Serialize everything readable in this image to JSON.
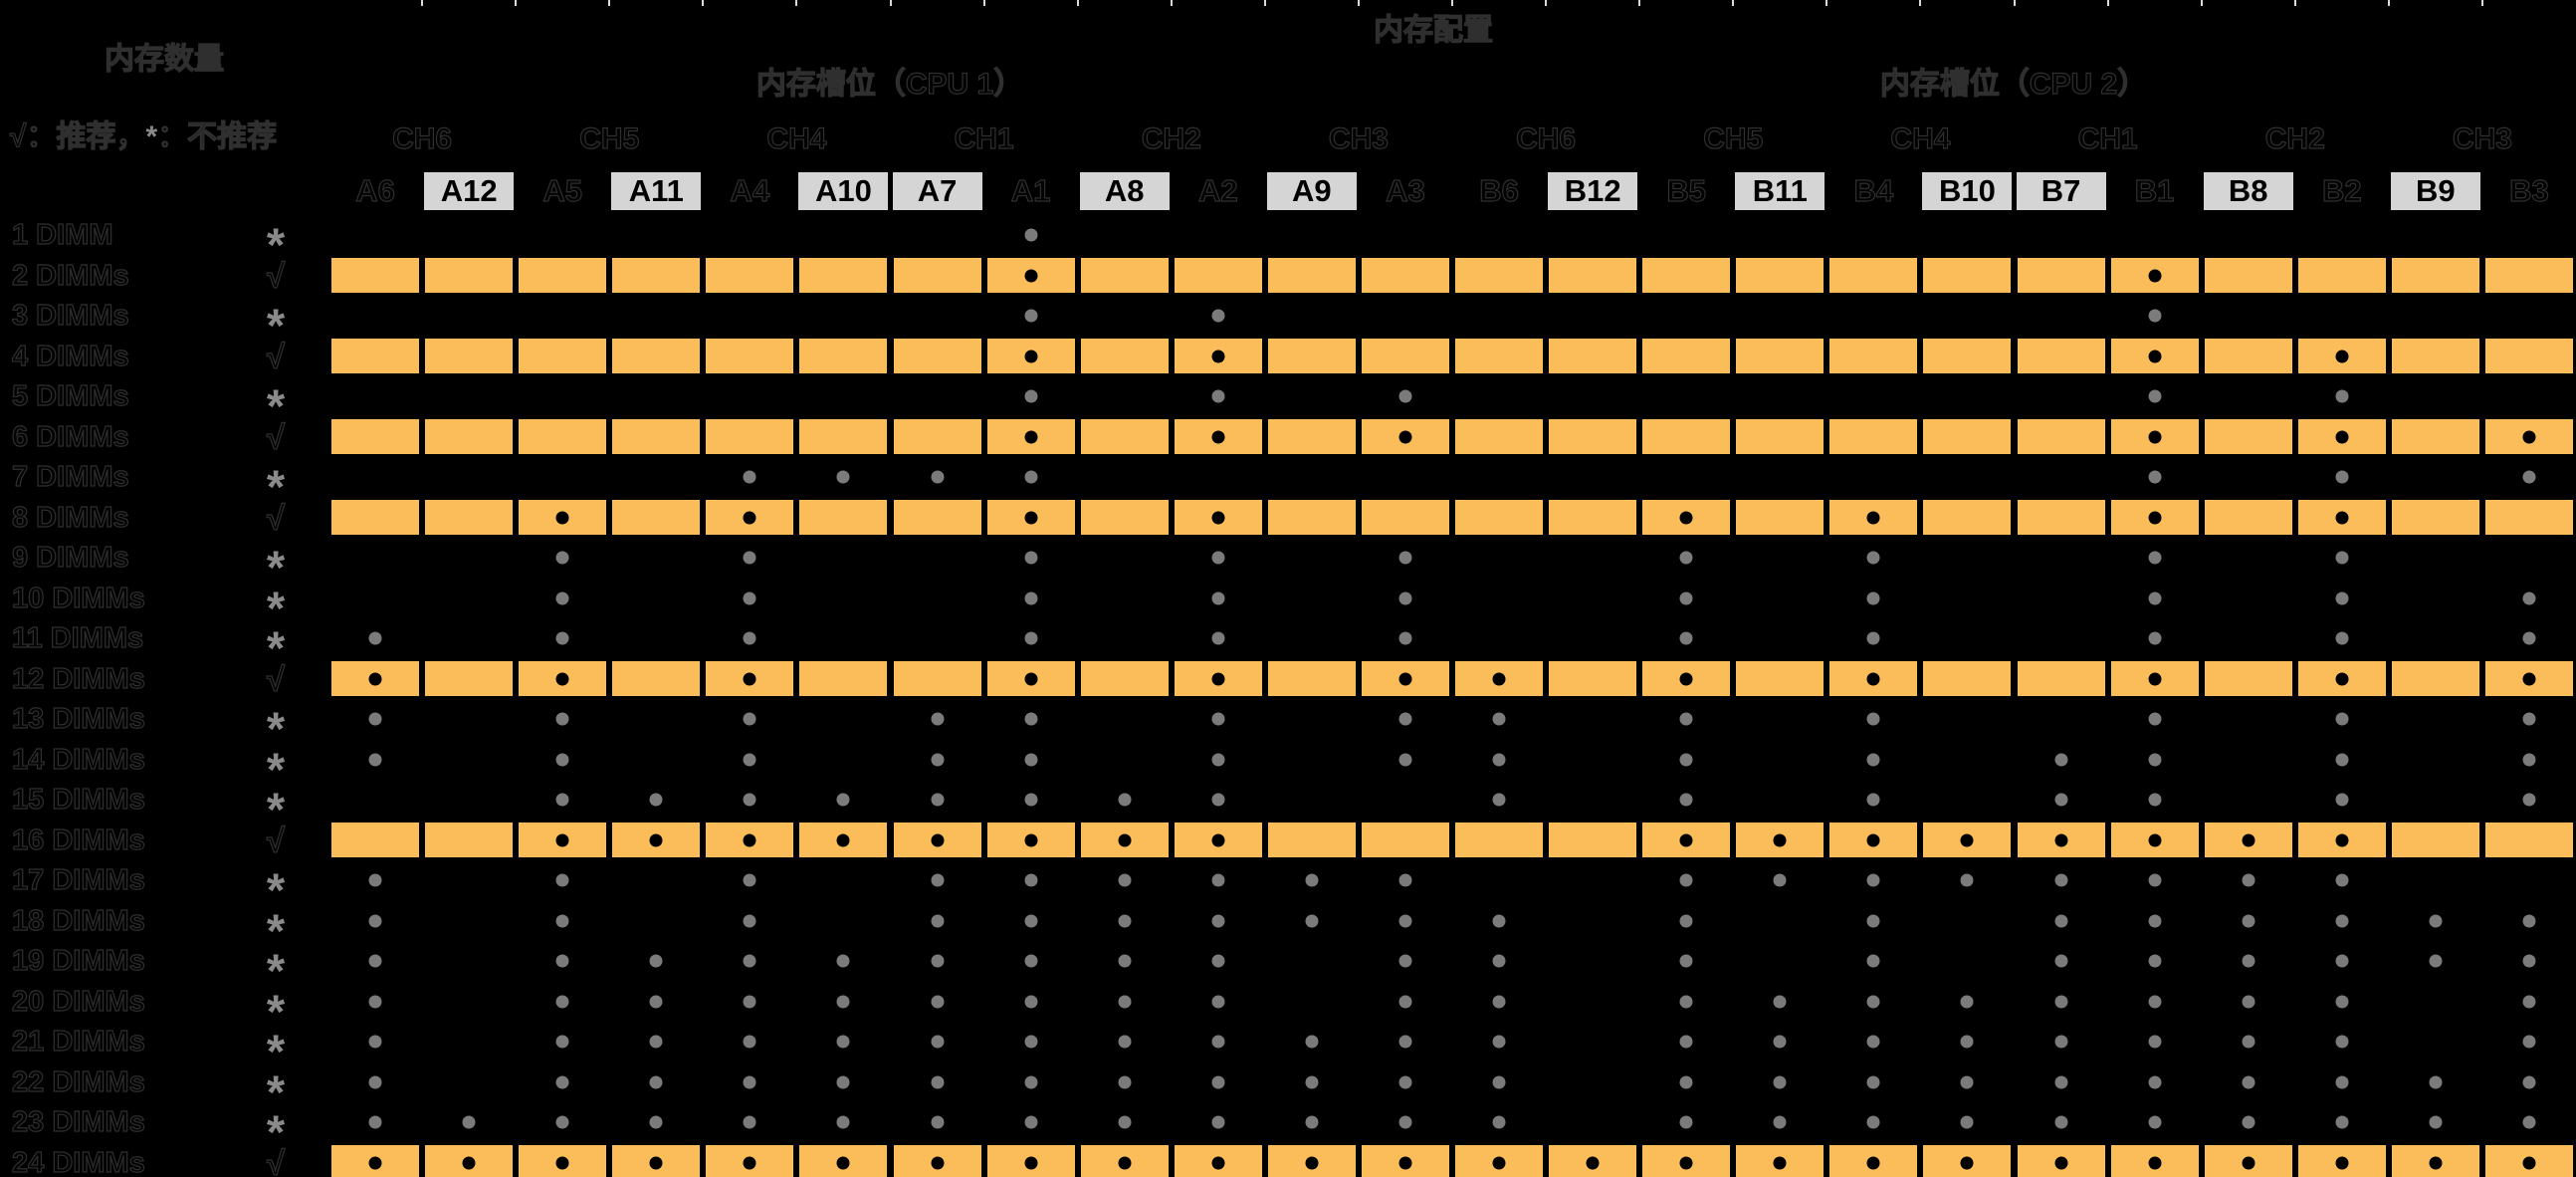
{
  "title": "内存配置",
  "columns": {
    "quantity_header": "内存数量",
    "cpu1_header": "内存槽位（CPU 1）",
    "cpu2_header": "内存槽位（CPU 2）"
  },
  "legend": {
    "check_part": "√：推荐，",
    "star": "*",
    "star_suffix": "：不推荐"
  },
  "colors": {
    "background": "#000000",
    "recommended_row": "#fbbd59",
    "highlight_slot_bg": "#d5d5d5",
    "dot_gray": "#7b7b7b",
    "dot_black": "#000000",
    "tick": "#d9d9d9"
  },
  "table": {
    "channels": [
      "CH6",
      "CH5",
      "CH4",
      "CH1",
      "CH2",
      "CH3",
      "CH6",
      "CH5",
      "CH4",
      "CH1",
      "CH2",
      "CH3"
    ],
    "slots": [
      {
        "label": "A6",
        "highlighted": false
      },
      {
        "label": "A12",
        "highlighted": true
      },
      {
        "label": "A5",
        "highlighted": false
      },
      {
        "label": "A11",
        "highlighted": true
      },
      {
        "label": "A4",
        "highlighted": false
      },
      {
        "label": "A10",
        "highlighted": true
      },
      {
        "label": "A7",
        "highlighted": true
      },
      {
        "label": "A1",
        "highlighted": false
      },
      {
        "label": "A8",
        "highlighted": true
      },
      {
        "label": "A2",
        "highlighted": false
      },
      {
        "label": "A9",
        "highlighted": true
      },
      {
        "label": "A3",
        "highlighted": false
      },
      {
        "label": "B6",
        "highlighted": false
      },
      {
        "label": "B12",
        "highlighted": true
      },
      {
        "label": "B5",
        "highlighted": false
      },
      {
        "label": "B11",
        "highlighted": true
      },
      {
        "label": "B4",
        "highlighted": false
      },
      {
        "label": "B10",
        "highlighted": true
      },
      {
        "label": "B7",
        "highlighted": true
      },
      {
        "label": "B1",
        "highlighted": false
      },
      {
        "label": "B8",
        "highlighted": true
      },
      {
        "label": "B2",
        "highlighted": false
      },
      {
        "label": "B9",
        "highlighted": true
      },
      {
        "label": "B3",
        "highlighted": false
      }
    ],
    "rows": [
      {
        "label": "1 DIMM",
        "mark": "*",
        "recommended": false,
        "populated": [
          "A1"
        ]
      },
      {
        "label": "2 DIMMs",
        "mark": "√",
        "recommended": true,
        "populated": [
          "A1",
          "B1"
        ]
      },
      {
        "label": "3 DIMMs",
        "mark": "*",
        "recommended": false,
        "populated": [
          "A1",
          "A2",
          "B1"
        ]
      },
      {
        "label": "4 DIMMs",
        "mark": "√",
        "recommended": true,
        "populated": [
          "A1",
          "A2",
          "B1",
          "B2"
        ]
      },
      {
        "label": "5 DIMMs",
        "mark": "*",
        "recommended": false,
        "populated": [
          "A1",
          "A2",
          "A3",
          "B1",
          "B2"
        ]
      },
      {
        "label": "6 DIMMs",
        "mark": "√",
        "recommended": true,
        "populated": [
          "A1",
          "A2",
          "A3",
          "B1",
          "B2",
          "B3"
        ]
      },
      {
        "label": "7 DIMMs",
        "mark": "*",
        "recommended": false,
        "populated": [
          "A4",
          "A10",
          "A7",
          "A1",
          "B1",
          "B2",
          "B3"
        ]
      },
      {
        "label": "8 DIMMs",
        "mark": "√",
        "recommended": true,
        "populated": [
          "A5",
          "A4",
          "A1",
          "A2",
          "B5",
          "B4",
          "B1",
          "B2"
        ]
      },
      {
        "label": "9 DIMMs",
        "mark": "*",
        "recommended": false,
        "populated": [
          "A5",
          "A4",
          "A1",
          "A2",
          "A3",
          "B5",
          "B4",
          "B1",
          "B2"
        ]
      },
      {
        "label": "10 DIMMs",
        "mark": "*",
        "recommended": false,
        "populated": [
          "A5",
          "A4",
          "A1",
          "A2",
          "A3",
          "B5",
          "B4",
          "B1",
          "B2",
          "B3"
        ]
      },
      {
        "label": "11 DIMMs",
        "mark": "*",
        "recommended": false,
        "populated": [
          "A6",
          "A5",
          "A4",
          "A1",
          "A2",
          "A3",
          "B5",
          "B4",
          "B1",
          "B2",
          "B3"
        ]
      },
      {
        "label": "12 DIMMs",
        "mark": "√",
        "recommended": true,
        "populated": [
          "A6",
          "A5",
          "A4",
          "A1",
          "A2",
          "A3",
          "B6",
          "B5",
          "B4",
          "B1",
          "B2",
          "B3"
        ]
      },
      {
        "label": "13 DIMMs",
        "mark": "*",
        "recommended": false,
        "populated": [
          "A6",
          "A5",
          "A4",
          "A7",
          "A1",
          "A2",
          "A3",
          "B6",
          "B5",
          "B4",
          "B1",
          "B2",
          "B3"
        ]
      },
      {
        "label": "14 DIMMs",
        "mark": "*",
        "recommended": false,
        "populated": [
          "A6",
          "A5",
          "A4",
          "A7",
          "A1",
          "A2",
          "A3",
          "B6",
          "B5",
          "B4",
          "B7",
          "B1",
          "B2",
          "B3"
        ]
      },
      {
        "label": "15 DIMMs",
        "mark": "*",
        "recommended": false,
        "populated": [
          "A5",
          "A11",
          "A4",
          "A10",
          "A7",
          "A1",
          "A8",
          "A2",
          "B6",
          "B5",
          "B4",
          "B7",
          "B1",
          "B2",
          "B3"
        ]
      },
      {
        "label": "16 DIMMs",
        "mark": "√",
        "recommended": true,
        "populated": [
          "A5",
          "A11",
          "A4",
          "A10",
          "A7",
          "A1",
          "A8",
          "A2",
          "B5",
          "B11",
          "B4",
          "B10",
          "B7",
          "B1",
          "B8",
          "B2"
        ]
      },
      {
        "label": "17 DIMMs",
        "mark": "*",
        "recommended": false,
        "populated": [
          "A6",
          "A5",
          "A4",
          "A7",
          "A1",
          "A8",
          "A2",
          "A9",
          "A3",
          "B5",
          "B11",
          "B4",
          "B10",
          "B7",
          "B1",
          "B8",
          "B2"
        ]
      },
      {
        "label": "18 DIMMs",
        "mark": "*",
        "recommended": false,
        "populated": [
          "A6",
          "A5",
          "A4",
          "A7",
          "A1",
          "A8",
          "A2",
          "A9",
          "A3",
          "B6",
          "B5",
          "B4",
          "B7",
          "B1",
          "B8",
          "B2",
          "B9",
          "B3"
        ]
      },
      {
        "label": "19 DIMMs",
        "mark": "*",
        "recommended": false,
        "populated": [
          "A6",
          "A5",
          "A11",
          "A4",
          "A10",
          "A7",
          "A1",
          "A8",
          "A2",
          "A3",
          "B6",
          "B5",
          "B4",
          "B7",
          "B1",
          "B8",
          "B2",
          "B9",
          "B3"
        ]
      },
      {
        "label": "20 DIMMs",
        "mark": "*",
        "recommended": false,
        "populated": [
          "A6",
          "A5",
          "A11",
          "A4",
          "A10",
          "A7",
          "A1",
          "A8",
          "A2",
          "A3",
          "B6",
          "B5",
          "B11",
          "B4",
          "B10",
          "B7",
          "B1",
          "B8",
          "B2",
          "B3"
        ]
      },
      {
        "label": "21 DIMMs",
        "mark": "*",
        "recommended": false,
        "populated": [
          "A6",
          "A5",
          "A11",
          "A4",
          "A10",
          "A7",
          "A1",
          "A8",
          "A2",
          "A9",
          "A3",
          "B6",
          "B5",
          "B11",
          "B4",
          "B10",
          "B7",
          "B1",
          "B8",
          "B2",
          "B3"
        ]
      },
      {
        "label": "22 DIMMs",
        "mark": "*",
        "recommended": false,
        "populated": [
          "A6",
          "A5",
          "A11",
          "A4",
          "A10",
          "A7",
          "A1",
          "A8",
          "A2",
          "A9",
          "A3",
          "B6",
          "B5",
          "B11",
          "B4",
          "B10",
          "B7",
          "B1",
          "B8",
          "B2",
          "B9",
          "B3"
        ]
      },
      {
        "label": "23 DIMMs",
        "mark": "*",
        "recommended": false,
        "populated": [
          "A6",
          "A12",
          "A5",
          "A11",
          "A4",
          "A10",
          "A7",
          "A1",
          "A8",
          "A2",
          "A9",
          "A3",
          "B6",
          "B5",
          "B11",
          "B4",
          "B10",
          "B7",
          "B1",
          "B8",
          "B2",
          "B9",
          "B3"
        ]
      },
      {
        "label": "24 DIMMs",
        "mark": "√",
        "recommended": true,
        "populated": [
          "A6",
          "A12",
          "A5",
          "A11",
          "A4",
          "A10",
          "A7",
          "A1",
          "A8",
          "A2",
          "A9",
          "A3",
          "B6",
          "B12",
          "B5",
          "B11",
          "B4",
          "B10",
          "B7",
          "B1",
          "B8",
          "B2",
          "B9",
          "B3"
        ]
      }
    ]
  }
}
